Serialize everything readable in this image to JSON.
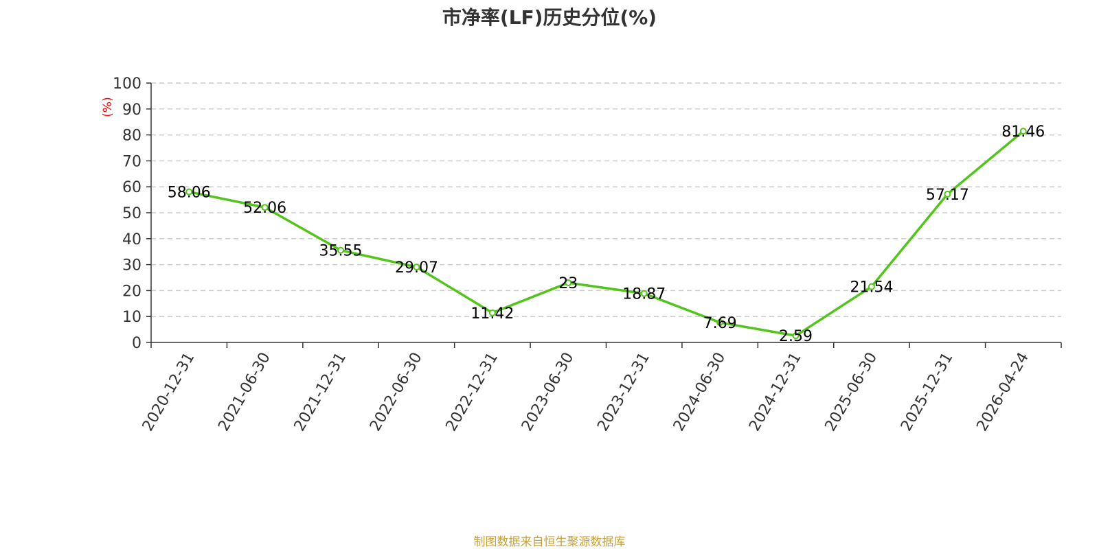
{
  "chart_data": {
    "type": "line",
    "title": "市净率(LF)历史分位(%)",
    "ylabel": "(%)",
    "xlabel": "",
    "categories": [
      "2020-12-31",
      "2021-06-30",
      "2021-12-31",
      "2022-06-30",
      "2022-12-31",
      "2023-06-30",
      "2023-12-31",
      "2024-06-30",
      "2024-12-31",
      "2025-06-30",
      "2025-12-31",
      "2026-04-24"
    ],
    "values": [
      58.06,
      52.06,
      35.55,
      29.07,
      11.42,
      23,
      18.87,
      7.69,
      2.59,
      21.54,
      57.17,
      81.46
    ],
    "value_labels": [
      "58.06",
      "52.06",
      "35.55",
      "29.07",
      "11.42",
      "23",
      "18.87",
      "7.69",
      "2.59",
      "21.54",
      "57.17",
      "81.46"
    ],
    "ylim": [
      0,
      100
    ],
    "yticks": [
      0,
      10,
      20,
      30,
      40,
      50,
      60,
      70,
      80,
      90,
      100
    ],
    "grid": true,
    "legend": "none",
    "colors": {
      "line": "#52c41a",
      "unit_label": "#ff0000",
      "axis": "#333333",
      "grid": "#cccccc",
      "source": "#c8a036"
    }
  },
  "footer": {
    "source": "制图数据来自恒生聚源数据库"
  }
}
